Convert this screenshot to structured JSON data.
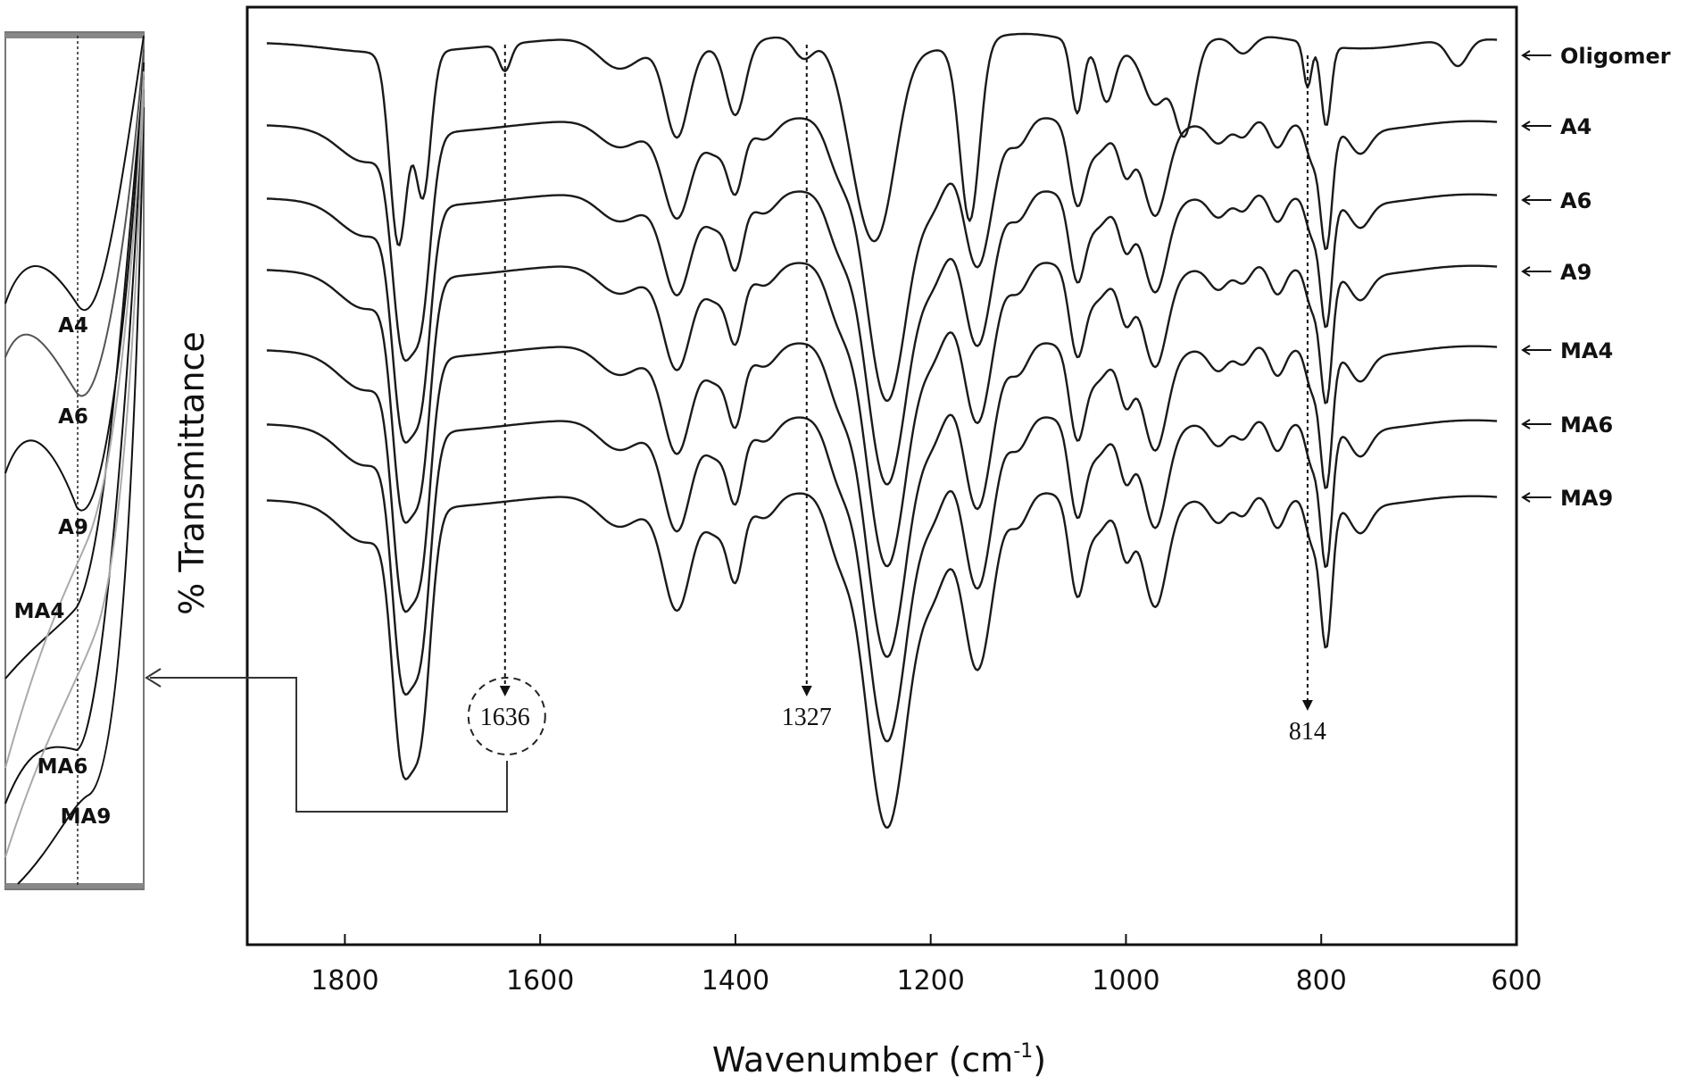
{
  "chart_data": {
    "type": "line",
    "title": "",
    "xlabel": "Wavenumber (cm",
    "xlabel_superscript": "-1",
    "xlabel_suffix": ")",
    "ylabel": "% Transmittance",
    "xlim": [
      1900,
      600
    ],
    "x_reversed": true,
    "grid": false,
    "x_ticks": [
      "1800",
      "1600",
      "1400",
      "1200",
      "1000",
      "800",
      "600"
    ],
    "y_ticks_shown": false,
    "series_offset": "stacked vertically (offset traces)",
    "legend": "series labels at right end of each trace",
    "series": [
      {
        "name": "Oligomer",
        "has_1636_band": true
      },
      {
        "name": "A4",
        "has_1636_band": false
      },
      {
        "name": "A6",
        "has_1636_band": false
      },
      {
        "name": "A9",
        "has_1636_band": false
      },
      {
        "name": "MA4",
        "has_1636_band": false
      },
      {
        "name": "MA6",
        "has_1636_band": false
      },
      {
        "name": "MA9",
        "has_1636_band": false
      }
    ],
    "peak_markers": [
      {
        "label": "1636",
        "wavenumber": 1636,
        "circled": true
      },
      {
        "label": "1327",
        "wavenumber": 1327,
        "circled": false
      },
      {
        "label": "814",
        "wavenumber": 814,
        "circled": false
      }
    ],
    "main_bands_cm-1": [
      1740,
      1725,
      1460,
      1400,
      1245,
      1150,
      1050,
      970,
      795
    ],
    "inset": {
      "description_region": "zoom around 1636 cm-1",
      "labels": [
        "A4",
        "A6",
        "A9",
        "MA4",
        "MA6",
        "MA9"
      ]
    }
  }
}
